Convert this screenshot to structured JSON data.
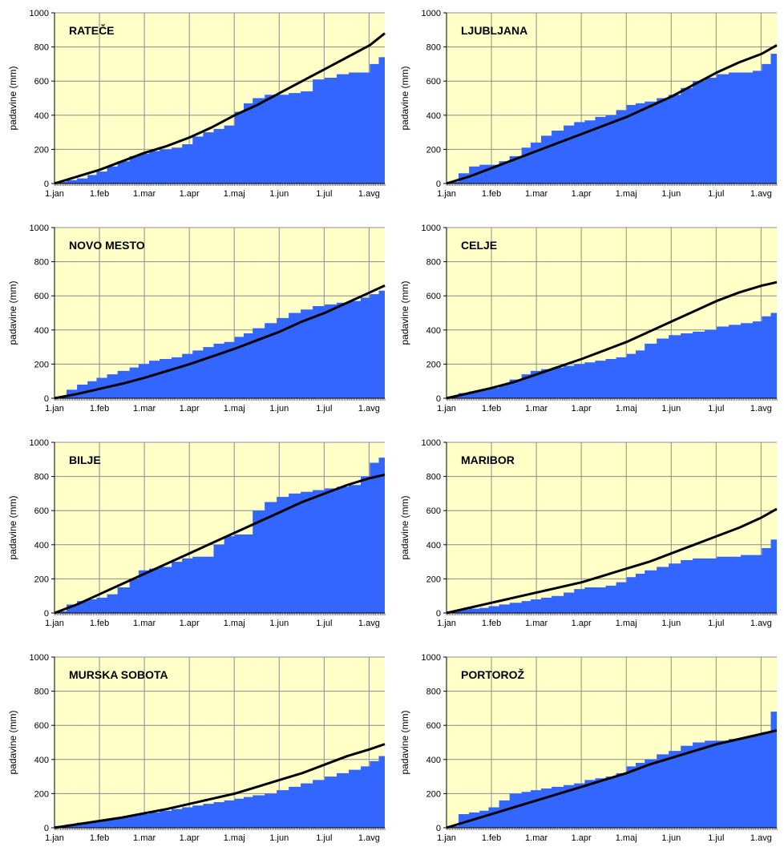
{
  "colors": {
    "plot_background": "#FFFFC8",
    "grid": "#8c8c8c",
    "area_fill": "#3366FF",
    "line": "#000000"
  },
  "chart_data": [
    {
      "type": "area",
      "title": "RATEČE",
      "ylabel": "padavine (mm)",
      "ylim": [
        0,
        1000
      ],
      "yticks": [
        "0",
        "200",
        "400",
        "600",
        "800",
        "1000"
      ],
      "xticks": [
        "1.jan",
        "1.feb",
        "1.mar",
        "1.apr",
        "1.maj",
        "1.jun",
        "1.jul",
        "1.avg"
      ],
      "xlim_days": [
        0,
        220
      ],
      "grid": true,
      "series": [
        {
          "style": "area",
          "x": [
            0,
            8,
            15,
            22,
            28,
            35,
            42,
            50,
            56,
            63,
            70,
            78,
            85,
            92,
            99,
            106,
            113,
            120,
            126,
            132,
            140,
            148,
            156,
            164,
            172,
            180,
            188,
            196,
            204,
            210,
            216,
            220
          ],
          "y": [
            10,
            20,
            30,
            50,
            70,
            100,
            130,
            160,
            175,
            190,
            200,
            210,
            230,
            275,
            300,
            320,
            340,
            420,
            470,
            500,
            520,
            520,
            530,
            540,
            610,
            620,
            640,
            650,
            650,
            700,
            740,
            760
          ]
        },
        {
          "style": "line",
          "x": [
            0,
            15,
            30,
            45,
            60,
            75,
            90,
            105,
            120,
            135,
            150,
            165,
            180,
            195,
            210,
            220
          ],
          "y": [
            0,
            40,
            80,
            130,
            180,
            220,
            270,
            330,
            400,
            460,
            530,
            600,
            670,
            740,
            810,
            880
          ]
        }
      ]
    },
    {
      "type": "area",
      "title": "LJUBLJANA",
      "ylabel": "padavine (mm)",
      "ylim": [
        0,
        1000
      ],
      "yticks": [
        "0",
        "200",
        "400",
        "600",
        "800",
        "1000"
      ],
      "xticks": [
        "1.jan",
        "1.feb",
        "1.mar",
        "1.apr",
        "1.maj",
        "1.jun",
        "1.jul",
        "1.avg"
      ],
      "xlim_days": [
        0,
        220
      ],
      "grid": true,
      "series": [
        {
          "style": "area",
          "x": [
            0,
            8,
            15,
            22,
            28,
            35,
            42,
            50,
            56,
            63,
            70,
            78,
            85,
            92,
            99,
            106,
            113,
            120,
            126,
            132,
            140,
            148,
            156,
            164,
            172,
            180,
            188,
            196,
            204,
            210,
            216,
            220
          ],
          "y": [
            10,
            60,
            100,
            110,
            110,
            130,
            160,
            210,
            240,
            280,
            310,
            340,
            360,
            370,
            390,
            400,
            430,
            460,
            470,
            480,
            500,
            520,
            560,
            600,
            620,
            640,
            650,
            650,
            660,
            700,
            760,
            780
          ]
        },
        {
          "style": "line",
          "x": [
            0,
            15,
            30,
            45,
            60,
            75,
            90,
            105,
            120,
            135,
            150,
            165,
            180,
            195,
            210,
            220
          ],
          "y": [
            0,
            40,
            90,
            140,
            190,
            240,
            290,
            340,
            390,
            450,
            510,
            580,
            650,
            710,
            760,
            810
          ]
        }
      ]
    },
    {
      "type": "area",
      "title": "NOVO MESTO",
      "ylabel": "padavine (mm)",
      "ylim": [
        0,
        1000
      ],
      "yticks": [
        "0",
        "200",
        "400",
        "600",
        "800",
        "1000"
      ],
      "xticks": [
        "1.jan",
        "1.feb",
        "1.mar",
        "1.apr",
        "1.maj",
        "1.jun",
        "1.jul",
        "1.avg"
      ],
      "xlim_days": [
        0,
        220
      ],
      "grid": true,
      "series": [
        {
          "style": "area",
          "x": [
            0,
            8,
            15,
            22,
            28,
            35,
            42,
            50,
            56,
            63,
            70,
            78,
            85,
            92,
            99,
            106,
            113,
            120,
            126,
            132,
            140,
            148,
            156,
            164,
            172,
            180,
            188,
            196,
            204,
            210,
            216,
            220
          ],
          "y": [
            10,
            50,
            80,
            100,
            120,
            140,
            160,
            180,
            200,
            220,
            230,
            240,
            260,
            280,
            300,
            320,
            330,
            360,
            380,
            410,
            440,
            470,
            500,
            520,
            540,
            550,
            560,
            570,
            590,
            610,
            630,
            650
          ]
        },
        {
          "style": "line",
          "x": [
            0,
            15,
            30,
            45,
            60,
            75,
            90,
            105,
            120,
            135,
            150,
            165,
            180,
            195,
            210,
            220
          ],
          "y": [
            0,
            25,
            55,
            85,
            120,
            160,
            200,
            245,
            290,
            340,
            390,
            450,
            500,
            560,
            620,
            660
          ]
        }
      ]
    },
    {
      "type": "area",
      "title": "CELJE",
      "ylabel": "padavine (mm)",
      "ylim": [
        0,
        1000
      ],
      "yticks": [
        "0",
        "200",
        "400",
        "600",
        "800",
        "1000"
      ],
      "xticks": [
        "1.jan",
        "1.feb",
        "1.mar",
        "1.apr",
        "1.maj",
        "1.jun",
        "1.jul",
        "1.avg"
      ],
      "xlim_days": [
        0,
        220
      ],
      "grid": true,
      "series": [
        {
          "style": "area",
          "x": [
            0,
            8,
            15,
            22,
            28,
            35,
            42,
            50,
            56,
            63,
            70,
            78,
            85,
            92,
            99,
            106,
            113,
            120,
            126,
            132,
            140,
            148,
            156,
            164,
            172,
            180,
            188,
            196,
            204,
            210,
            216,
            220
          ],
          "y": [
            10,
            30,
            40,
            50,
            60,
            80,
            110,
            140,
            160,
            170,
            180,
            190,
            200,
            210,
            220,
            230,
            240,
            260,
            280,
            320,
            350,
            370,
            380,
            390,
            400,
            420,
            430,
            440,
            450,
            480,
            500,
            520
          ]
        },
        {
          "style": "line",
          "x": [
            0,
            15,
            30,
            45,
            60,
            75,
            90,
            105,
            120,
            135,
            150,
            165,
            180,
            195,
            210,
            220
          ],
          "y": [
            0,
            30,
            60,
            95,
            140,
            185,
            230,
            280,
            330,
            390,
            450,
            510,
            570,
            620,
            660,
            680
          ]
        }
      ]
    },
    {
      "type": "area",
      "title": "BILJE",
      "ylabel": "padavine (mm)",
      "ylim": [
        0,
        1000
      ],
      "yticks": [
        "0",
        "200",
        "400",
        "600",
        "800",
        "1000"
      ],
      "xticks": [
        "1.jan",
        "1.feb",
        "1.mar",
        "1.apr",
        "1.maj",
        "1.jun",
        "1.jul",
        "1.avg"
      ],
      "xlim_days": [
        0,
        220
      ],
      "grid": true,
      "series": [
        {
          "style": "area",
          "x": [
            0,
            8,
            15,
            22,
            28,
            35,
            42,
            50,
            56,
            63,
            70,
            78,
            85,
            92,
            99,
            106,
            113,
            120,
            126,
            132,
            140,
            148,
            156,
            164,
            172,
            180,
            188,
            196,
            204,
            210,
            216,
            220
          ],
          "y": [
            10,
            50,
            70,
            80,
            90,
            110,
            150,
            200,
            250,
            260,
            270,
            300,
            320,
            330,
            330,
            400,
            450,
            460,
            460,
            600,
            650,
            680,
            700,
            710,
            720,
            730,
            740,
            750,
            800,
            880,
            910,
            920
          ]
        },
        {
          "style": "line",
          "x": [
            0,
            15,
            30,
            45,
            60,
            75,
            90,
            105,
            120,
            135,
            150,
            165,
            180,
            195,
            210,
            220
          ],
          "y": [
            0,
            50,
            110,
            170,
            230,
            290,
            350,
            410,
            470,
            530,
            590,
            650,
            700,
            750,
            790,
            810
          ]
        }
      ]
    },
    {
      "type": "area",
      "title": "MARIBOR",
      "ylabel": "padavine (mm)",
      "ylim": [
        0,
        1000
      ],
      "yticks": [
        "0",
        "200",
        "400",
        "600",
        "800",
        "1000"
      ],
      "xticks": [
        "1.jan",
        "1.feb",
        "1.mar",
        "1.apr",
        "1.maj",
        "1.jun",
        "1.jul",
        "1.avg"
      ],
      "xlim_days": [
        0,
        220
      ],
      "grid": true,
      "series": [
        {
          "style": "area",
          "x": [
            0,
            8,
            15,
            22,
            28,
            35,
            42,
            50,
            56,
            63,
            70,
            78,
            85,
            92,
            99,
            106,
            113,
            120,
            126,
            132,
            140,
            148,
            156,
            164,
            172,
            180,
            188,
            196,
            204,
            210,
            216,
            220
          ],
          "y": [
            10,
            20,
            25,
            30,
            40,
            50,
            60,
            70,
            80,
            90,
            100,
            120,
            140,
            150,
            150,
            160,
            180,
            210,
            230,
            250,
            270,
            290,
            310,
            320,
            320,
            330,
            330,
            340,
            340,
            380,
            430,
            470
          ]
        },
        {
          "style": "line",
          "x": [
            0,
            15,
            30,
            45,
            60,
            75,
            90,
            105,
            120,
            135,
            150,
            165,
            180,
            195,
            210,
            220
          ],
          "y": [
            0,
            30,
            60,
            90,
            120,
            150,
            180,
            220,
            260,
            300,
            350,
            400,
            450,
            500,
            560,
            610
          ]
        }
      ]
    },
    {
      "type": "area",
      "title": "MURSKA SOBOTA",
      "ylabel": "padavine (mm)",
      "ylim": [
        0,
        1000
      ],
      "yticks": [
        "0",
        "200",
        "400",
        "600",
        "800",
        "1000"
      ],
      "xticks": [
        "1.jan",
        "1.feb",
        "1.mar",
        "1.apr",
        "1.maj",
        "1.jun",
        "1.jul",
        "1.avg"
      ],
      "xlim_days": [
        0,
        220
      ],
      "grid": true,
      "series": [
        {
          "style": "area",
          "x": [
            0,
            8,
            15,
            22,
            28,
            35,
            42,
            50,
            56,
            63,
            70,
            78,
            85,
            92,
            99,
            106,
            113,
            120,
            126,
            132,
            140,
            148,
            156,
            164,
            172,
            180,
            188,
            196,
            204,
            210,
            216,
            220
          ],
          "y": [
            10,
            20,
            30,
            35,
            40,
            50,
            60,
            70,
            80,
            90,
            100,
            110,
            120,
            130,
            140,
            150,
            160,
            170,
            180,
            190,
            200,
            220,
            240,
            260,
            280,
            300,
            320,
            340,
            360,
            390,
            420,
            450
          ]
        },
        {
          "style": "line",
          "x": [
            0,
            15,
            30,
            45,
            60,
            75,
            90,
            105,
            120,
            135,
            150,
            165,
            180,
            195,
            210,
            220
          ],
          "y": [
            0,
            20,
            40,
            60,
            85,
            110,
            140,
            170,
            200,
            240,
            280,
            320,
            370,
            420,
            460,
            490
          ]
        }
      ]
    },
    {
      "type": "area",
      "title": "PORTOROŽ",
      "ylabel": "padavine (mm)",
      "ylim": [
        0,
        1000
      ],
      "yticks": [
        "0",
        "200",
        "400",
        "600",
        "800",
        "1000"
      ],
      "xticks": [
        "1.jan",
        "1.feb",
        "1.mar",
        "1.apr",
        "1.maj",
        "1.jun",
        "1.jul",
        "1.avg"
      ],
      "xlim_days": [
        0,
        220
      ],
      "grid": true,
      "series": [
        {
          "style": "area",
          "x": [
            0,
            8,
            15,
            22,
            28,
            35,
            42,
            50,
            56,
            63,
            70,
            78,
            85,
            92,
            99,
            106,
            113,
            120,
            126,
            132,
            140,
            148,
            156,
            164,
            172,
            180,
            188,
            196,
            204,
            210,
            216,
            220
          ],
          "y": [
            10,
            80,
            90,
            100,
            120,
            160,
            200,
            210,
            220,
            230,
            240,
            250,
            260,
            280,
            290,
            300,
            320,
            360,
            380,
            400,
            430,
            450,
            480,
            500,
            510,
            510,
            520,
            530,
            540,
            560,
            680,
            700
          ]
        },
        {
          "style": "line",
          "x": [
            0,
            15,
            30,
            45,
            60,
            75,
            90,
            105,
            120,
            135,
            150,
            165,
            180,
            195,
            210,
            220
          ],
          "y": [
            0,
            40,
            80,
            120,
            160,
            200,
            240,
            280,
            320,
            370,
            410,
            450,
            490,
            520,
            550,
            570
          ]
        }
      ]
    }
  ]
}
